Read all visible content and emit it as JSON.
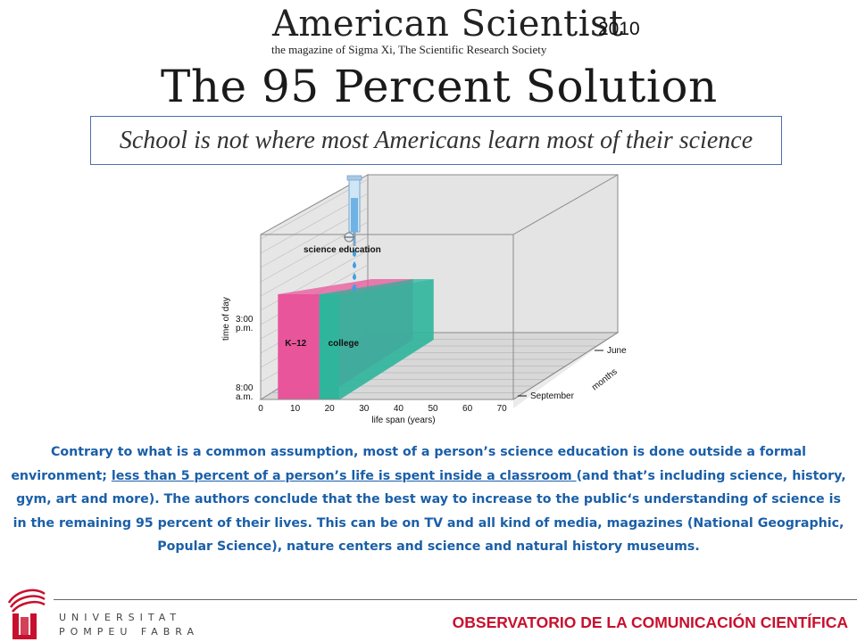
{
  "masthead": {
    "title": "American Scientist",
    "subtitle": "the magazine of Sigma Xi, The Scientific Research Society",
    "year": "2010"
  },
  "headline": "The 95 Percent Solution",
  "tagline": "School is not where most Americans learn most of their science",
  "chart_data": {
    "type": "3d-box",
    "xlabel": "life span (years)",
    "x_ticks": [
      "0",
      "10",
      "20",
      "30",
      "40",
      "50",
      "60",
      "70"
    ],
    "xlim": [
      0,
      70
    ],
    "ylabel": "time of day",
    "y_ticks": [
      "8:00 a.m.",
      "3:00 p.m."
    ],
    "zlabel": "months",
    "z_ticks": [
      "September",
      "June"
    ],
    "segments": [
      {
        "name": "K–12",
        "start_years": 5,
        "end_years": 17,
        "color": "#e8559b"
      },
      {
        "name": "college",
        "start_years": 17,
        "end_years": 23,
        "color": "#2fb59c"
      }
    ],
    "annotation": "science education"
  },
  "body": {
    "part1": "Contrary to what is a common assumption, most of a person’s science education is done outside a formal environment; ",
    "underlined": "less than 5 percent of a person’s life is spent inside a classroom ",
    "part2": "(and that’s including science, history, gym, art and more). The authors conclude that the best way to increase to the public‘s understanding of science is in the remaining 95 percent of their lives. This can be on TV and all kind of media, magazines (National Geographic, Popular Science), nature centers and science and natural history museums."
  },
  "footer": {
    "university_line1": "UNIVERSITAT",
    "university_line2": "POMPEU FABRA",
    "observatory": "OBSERVATORIO DE LA COMUNICACIÓN CIENTÍFICA"
  },
  "colors": {
    "body_text": "#1a5fa8",
    "footer_accent": "#c8102e",
    "k12": "#e8559b",
    "college": "#2fb59c"
  }
}
